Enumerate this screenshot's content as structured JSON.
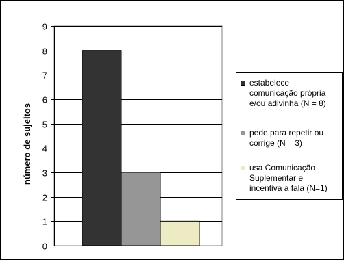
{
  "chart_data": {
    "type": "bar",
    "ylabel": "número de sujeitos",
    "ylim": [
      0,
      9
    ],
    "yticks": [
      0,
      1,
      2,
      3,
      4,
      5,
      6,
      7,
      8,
      9
    ],
    "grid": true,
    "legend_position": "right",
    "series": [
      {
        "name": "estabelece comunicação própria e/ou adivinha (N = 8)",
        "value": 8,
        "color": "#333333"
      },
      {
        "name": "pede para repetir ou corrige (N = 3)",
        "value": 3,
        "color": "#969696"
      },
      {
        "name": "usa Comunicação Suplementar e incentiva a fala (N=1)",
        "value": 1,
        "color": "#EDEBC3"
      }
    ]
  },
  "legend": {
    "items": [
      {
        "text": "estabelece\ncomunicação própria\ne/ou adivinha (N = 8)"
      },
      {
        "text": "pede para repetir ou\ncorrige (N = 3)"
      },
      {
        "text": "usa Comunicação\nSuplementar e\nincentiva a fala (N=1)"
      }
    ]
  }
}
